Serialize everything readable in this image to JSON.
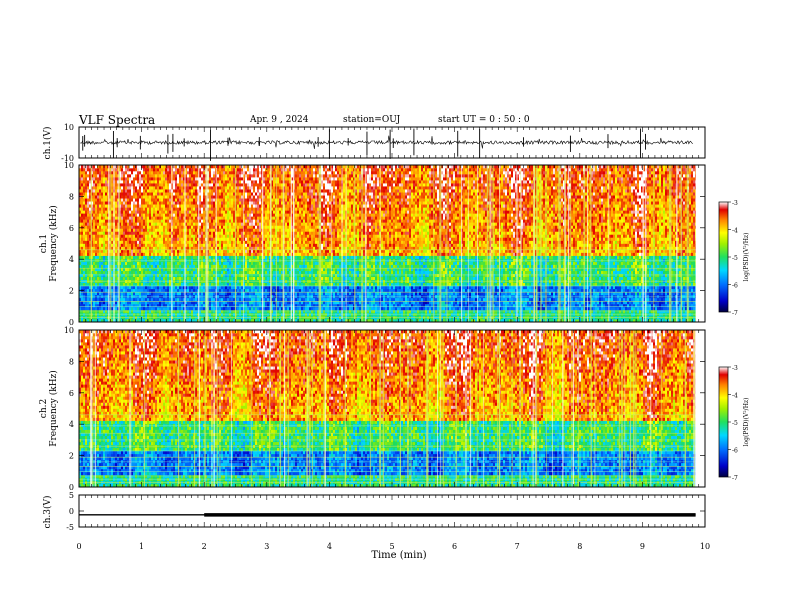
{
  "header": {
    "title": "VLF Spectra",
    "date": "Apr. 9 , 2024",
    "station": "station=OUJ",
    "start_ut": "start UT = 0 : 50 : 0"
  },
  "chart_data": [
    {
      "type": "line",
      "panel": "ch1-waveform",
      "ylabel": "ch.1(V)",
      "ylim": [
        -10,
        10
      ],
      "yticks": [
        10,
        -10
      ],
      "xlim": [
        0,
        10
      ],
      "baseline": 0
    },
    {
      "type": "heatmap",
      "panel": "ch1-spectrogram",
      "ylabel": "ch.1 Frequency (kHz)",
      "ylim": [
        0,
        10
      ],
      "yticks": [
        0,
        2,
        4,
        6,
        8,
        10
      ],
      "xlim": [
        0,
        10
      ],
      "colorbar": {
        "label": "log(PSD)(V²/Hz)",
        "range": [
          -7,
          -3
        ],
        "ticks": [
          -3,
          -4,
          -5,
          -6,
          -7
        ]
      }
    },
    {
      "type": "heatmap",
      "panel": "ch2-spectrogram",
      "ylabel": "ch.2 Frequency (kHz)",
      "ylim": [
        0,
        10
      ],
      "yticks": [
        0,
        2,
        4,
        6,
        8,
        10
      ],
      "xlim": [
        0,
        10
      ],
      "colorbar": {
        "label": "log(PSD)(V²/Hz)",
        "range": [
          -7,
          -3
        ],
        "ticks": [
          -3,
          -4,
          -5,
          -6,
          -7
        ]
      }
    },
    {
      "type": "line",
      "panel": "ch3-level",
      "ylabel": "ch.3(V)",
      "ylim": [
        -5,
        5
      ],
      "yticks": [
        5,
        0,
        -5
      ],
      "xlim": [
        0,
        10
      ],
      "series": [
        {
          "x": [
            0,
            2,
            2,
            9.85
          ],
          "y": [
            -1.2,
            -1.2,
            -1.2,
            -1.2
          ]
        }
      ]
    }
  ],
  "x_axis": {
    "label": "Time (min)",
    "ticks": [
      0,
      1,
      2,
      3,
      4,
      5,
      6,
      7,
      8,
      9,
      10
    ]
  }
}
